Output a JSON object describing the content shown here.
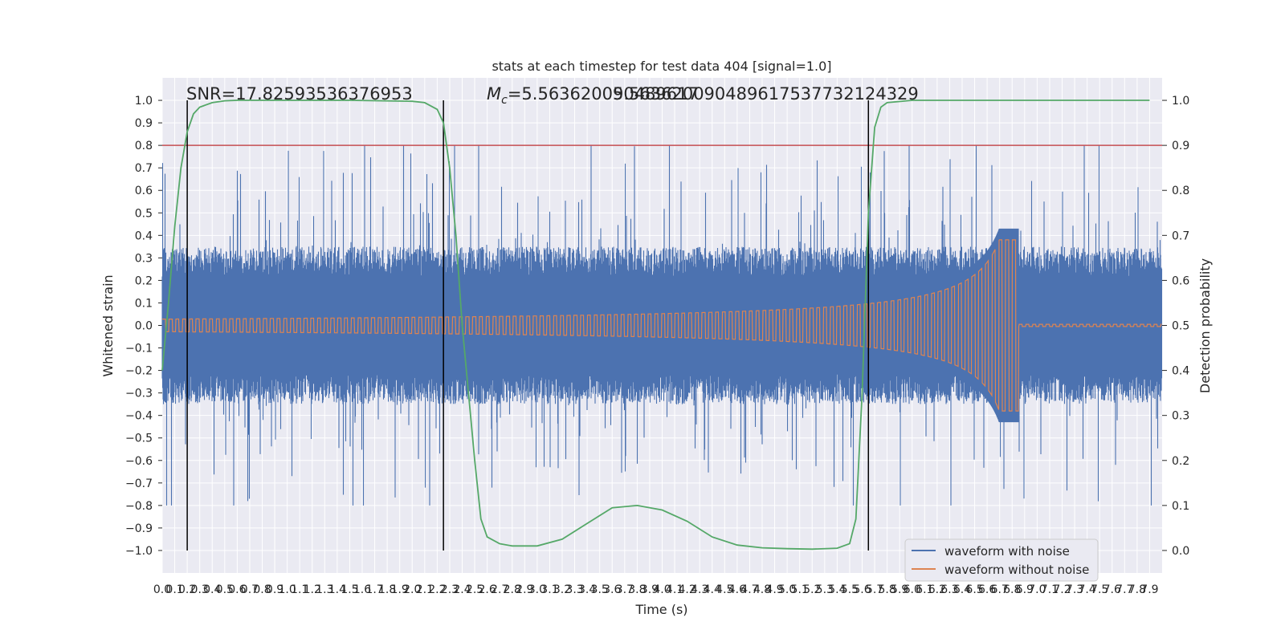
{
  "chart_data": {
    "type": "line",
    "title": "stats at each timestep for test data 404 [signal=1.0]",
    "xlabel": "Time (s)",
    "ylabel": "Whitened strain",
    "y2label": "Detection probability",
    "xlim": [
      0.0,
      8.0
    ],
    "ylim": [
      -1.1,
      1.1
    ],
    "y2lim": [
      -0.05,
      1.05
    ],
    "x_tick_step": 0.1,
    "x_tick_max": 7.9,
    "y_ticks": [
      -1.0,
      -0.9,
      -0.8,
      -0.7,
      -0.6,
      -0.5,
      -0.4,
      -0.3,
      -0.2,
      -0.1,
      0.0,
      0.1,
      0.2,
      0.3,
      0.4,
      0.5,
      0.6,
      0.7,
      0.8,
      0.9,
      1.0
    ],
    "y2_ticks": [
      0.0,
      0.1,
      0.2,
      0.3,
      0.4,
      0.5,
      0.6,
      0.7,
      0.8,
      0.9,
      1.0
    ],
    "annotations": {
      "snr": "SNR=17.82593536376953",
      "mc_symbol": "M",
      "mc_sub": "c",
      "mc_value": "=5.563620090489617",
      "overlap_text": "5.563620090489617537732124329"
    },
    "threshold_y2": 0.9,
    "vertical_lines_x": [
      0.2,
      2.25,
      5.65
    ],
    "chirp_merger_time": 6.85,
    "noise_amplitude_typical": 0.35,
    "noise_spike_max": 0.8,
    "detection_probability": {
      "x": [
        0.0,
        0.05,
        0.1,
        0.15,
        0.2,
        0.25,
        0.3,
        0.4,
        0.5,
        0.6,
        0.8,
        1.0,
        1.5,
        2.0,
        2.1,
        2.2,
        2.25,
        2.3,
        2.35,
        2.4,
        2.5,
        2.55,
        2.6,
        2.7,
        2.8,
        3.0,
        3.2,
        3.4,
        3.6,
        3.8,
        4.0,
        4.2,
        4.4,
        4.6,
        4.8,
        5.0,
        5.2,
        5.4,
        5.5,
        5.55,
        5.6,
        5.65,
        5.7,
        5.75,
        5.8,
        6.0,
        7.9
      ],
      "y": [
        0.4,
        0.55,
        0.72,
        0.85,
        0.93,
        0.97,
        0.985,
        0.995,
        0.999,
        1.0,
        1.0,
        1.0,
        1.0,
        0.998,
        0.995,
        0.98,
        0.95,
        0.85,
        0.7,
        0.5,
        0.2,
        0.07,
        0.03,
        0.015,
        0.01,
        0.01,
        0.025,
        0.06,
        0.095,
        0.1,
        0.09,
        0.065,
        0.03,
        0.012,
        0.006,
        0.004,
        0.003,
        0.005,
        0.015,
        0.07,
        0.35,
        0.75,
        0.94,
        0.985,
        0.995,
        1.0,
        1.0
      ]
    },
    "series": [
      {
        "name": "waveform with noise",
        "color": "#4c72b0"
      },
      {
        "name": "waveform without noise",
        "color": "#dd8452"
      }
    ],
    "colors": {
      "background": "#eaeaf2",
      "grid": "#ffffff",
      "prob_line": "#55a868",
      "threshold": "#c44e52",
      "vline": "#000000"
    },
    "legend_position": "lower-right"
  }
}
